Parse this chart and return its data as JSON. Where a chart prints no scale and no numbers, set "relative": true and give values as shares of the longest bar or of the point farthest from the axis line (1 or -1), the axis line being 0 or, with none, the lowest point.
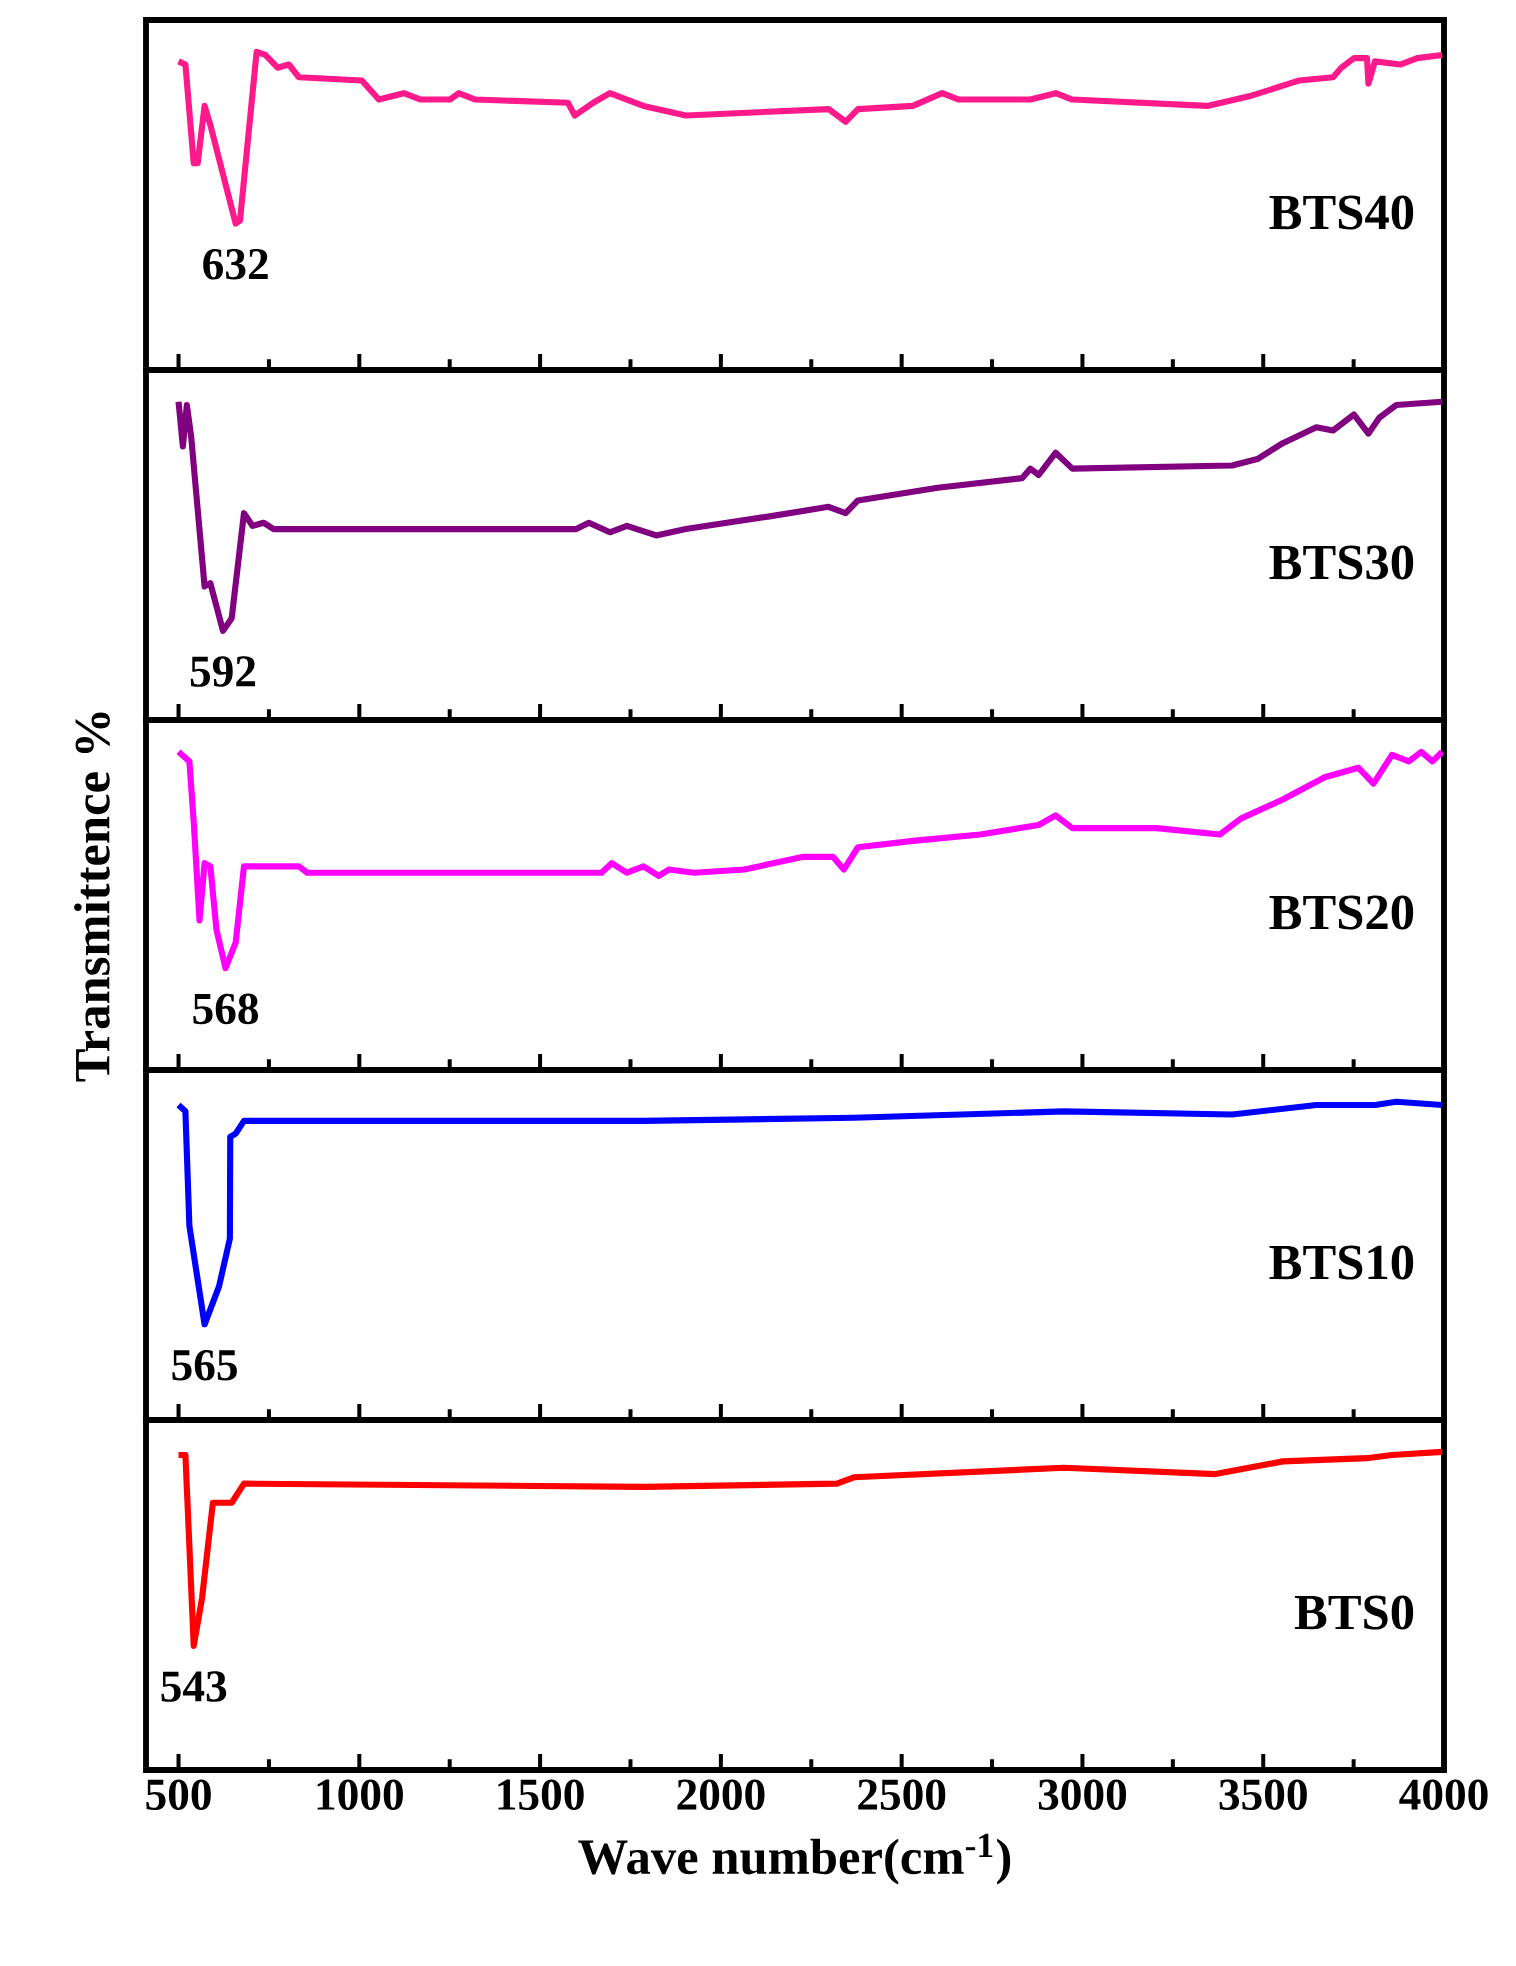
{
  "chart_data": [
    {
      "type": "line",
      "relative": true,
      "xlim": [
        410,
        4000
      ],
      "tick_labels": false,
      "xticks": [
        500,
        1000,
        1500,
        2000,
        2500,
        3000,
        3500,
        4000
      ],
      "annotations": [
        "632"
      ],
      "series": [
        {
          "name": "BTS40",
          "color": "#ff1a8c",
          "x": [
            500,
            519,
            542,
            553,
            572,
            588,
            658,
            670,
            716,
            740,
            774,
            805,
            833,
            1007,
            1054,
            1123,
            1170,
            1251,
            1275,
            1321,
            1577,
            1596,
            1647,
            1693,
            1740,
            1786,
            1903,
            2298,
            2345,
            2379,
            2531,
            2612,
            2658,
            2856,
            2926,
            2972,
            3345,
            3461,
            3600,
            3693,
            3716,
            3751,
            3787,
            3791,
            3809,
            3879,
            3926,
            3995
          ],
          "values": [
            0.97,
            0.96,
            0.65,
            0.65,
            0.83,
            0.77,
            0.46,
            0.47,
            1.0,
            0.99,
            0.95,
            0.96,
            0.92,
            0.91,
            0.85,
            0.87,
            0.85,
            0.85,
            0.87,
            0.85,
            0.84,
            0.8,
            0.84,
            0.87,
            0.85,
            0.83,
            0.8,
            0.82,
            0.78,
            0.82,
            0.83,
            0.87,
            0.85,
            0.85,
            0.87,
            0.85,
            0.83,
            0.86,
            0.91,
            0.92,
            0.95,
            0.98,
            0.98,
            0.9,
            0.97,
            0.96,
            0.98,
            0.99
          ]
        }
      ]
    },
    {
      "type": "line",
      "relative": true,
      "xlim": [
        410,
        4000
      ],
      "tick_labels": false,
      "xticks": [
        500,
        1000,
        1500,
        2000,
        2500,
        3000,
        3500,
        4000
      ],
      "annotations": [
        "592"
      ],
      "series": [
        {
          "name": "BTS30",
          "color": "#800080",
          "x": [
            500,
            512,
            523,
            535,
            572,
            588,
            623,
            647,
            681,
            705,
            735,
            763,
            1600,
            1635,
            1693,
            1740,
            1821,
            1903,
            2135,
            2298,
            2345,
            2379,
            2600,
            2833,
            2856,
            2879,
            2926,
            2972,
            3414,
            3484,
            3554,
            3647,
            3693,
            3751,
            3791,
            3821,
            3868,
            3995
          ],
          "values": [
            1.0,
            0.86,
            0.99,
            0.89,
            0.42,
            0.43,
            0.28,
            0.32,
            0.65,
            0.61,
            0.62,
            0.6,
            0.6,
            0.62,
            0.59,
            0.61,
            0.58,
            0.6,
            0.64,
            0.67,
            0.65,
            0.69,
            0.73,
            0.76,
            0.79,
            0.77,
            0.84,
            0.79,
            0.8,
            0.82,
            0.87,
            0.92,
            0.91,
            0.96,
            0.9,
            0.95,
            0.99,
            1.0
          ]
        }
      ]
    },
    {
      "type": "line",
      "relative": true,
      "xlim": [
        410,
        4000
      ],
      "tick_labels": false,
      "ylabel": "Transmittence %",
      "xticks": [
        500,
        1000,
        1500,
        2000,
        2500,
        3000,
        3500,
        4000
      ],
      "annotations": [
        "568"
      ],
      "series": [
        {
          "name": "BTS20",
          "color": "#ff00ff",
          "x": [
            500,
            530,
            542,
            558,
            572,
            588,
            605,
            630,
            658,
            681,
            833,
            856,
            1670,
            1698,
            1740,
            1786,
            1828,
            1856,
            1926,
            2065,
            2228,
            2310,
            2340,
            2379,
            2531,
            2717,
            2879,
            2926,
            2972,
            3205,
            3380,
            3438,
            3554,
            3670,
            3763,
            3805,
            3856,
            3903,
            3937,
            3968,
            3995
          ],
          "values": [
            1.0,
            0.97,
            0.78,
            0.47,
            0.65,
            0.64,
            0.44,
            0.32,
            0.4,
            0.64,
            0.64,
            0.62,
            0.62,
            0.65,
            0.62,
            0.64,
            0.61,
            0.63,
            0.62,
            0.63,
            0.67,
            0.67,
            0.63,
            0.7,
            0.72,
            0.74,
            0.77,
            0.8,
            0.76,
            0.76,
            0.74,
            0.79,
            0.85,
            0.92,
            0.95,
            0.9,
            0.99,
            0.97,
            1.0,
            0.97,
            1.0
          ]
        }
      ]
    },
    {
      "type": "line",
      "relative": true,
      "xlim": [
        410,
        4000
      ],
      "tick_labels": false,
      "xticks": [
        500,
        1000,
        1500,
        2000,
        2500,
        3000,
        3500,
        4000
      ],
      "annotations": [
        "565"
      ],
      "series": [
        {
          "name": "BTS10",
          "color": "#0000ff",
          "x": [
            500,
            519,
            530,
            572,
            612,
            642,
            643,
            658,
            681,
            1786,
            2368,
            2949,
            3414,
            3647,
            3809,
            3868,
            3995
          ],
          "values": [
            0.99,
            0.97,
            0.61,
            0.3,
            0.42,
            0.57,
            0.89,
            0.9,
            0.94,
            0.94,
            0.95,
            0.97,
            0.96,
            0.99,
            0.99,
            1.0,
            0.99
          ]
        }
      ]
    },
    {
      "type": "line",
      "relative": true,
      "xlim": [
        410,
        4000
      ],
      "tick_labels": "x",
      "xlabel": "Wave number(cm$^{-1}$)",
      "xticks": [
        500,
        1000,
        1500,
        2000,
        2500,
        3000,
        3500,
        4000
      ],
      "annotations": [
        "543"
      ],
      "series": [
        {
          "name": "BTS0",
          "color": "#ff0000",
          "x": [
            500,
            519,
            542,
            565,
            595,
            647,
            681,
            1786,
            2321,
            2368,
            2949,
            3368,
            3554,
            3786,
            3856,
            3995
          ],
          "values": [
            0.99,
            0.99,
            0.39,
            0.54,
            0.84,
            0.84,
            0.9,
            0.89,
            0.9,
            0.92,
            0.95,
            0.93,
            0.97,
            0.98,
            0.99,
            1.0
          ]
        }
      ]
    }
  ]
}
